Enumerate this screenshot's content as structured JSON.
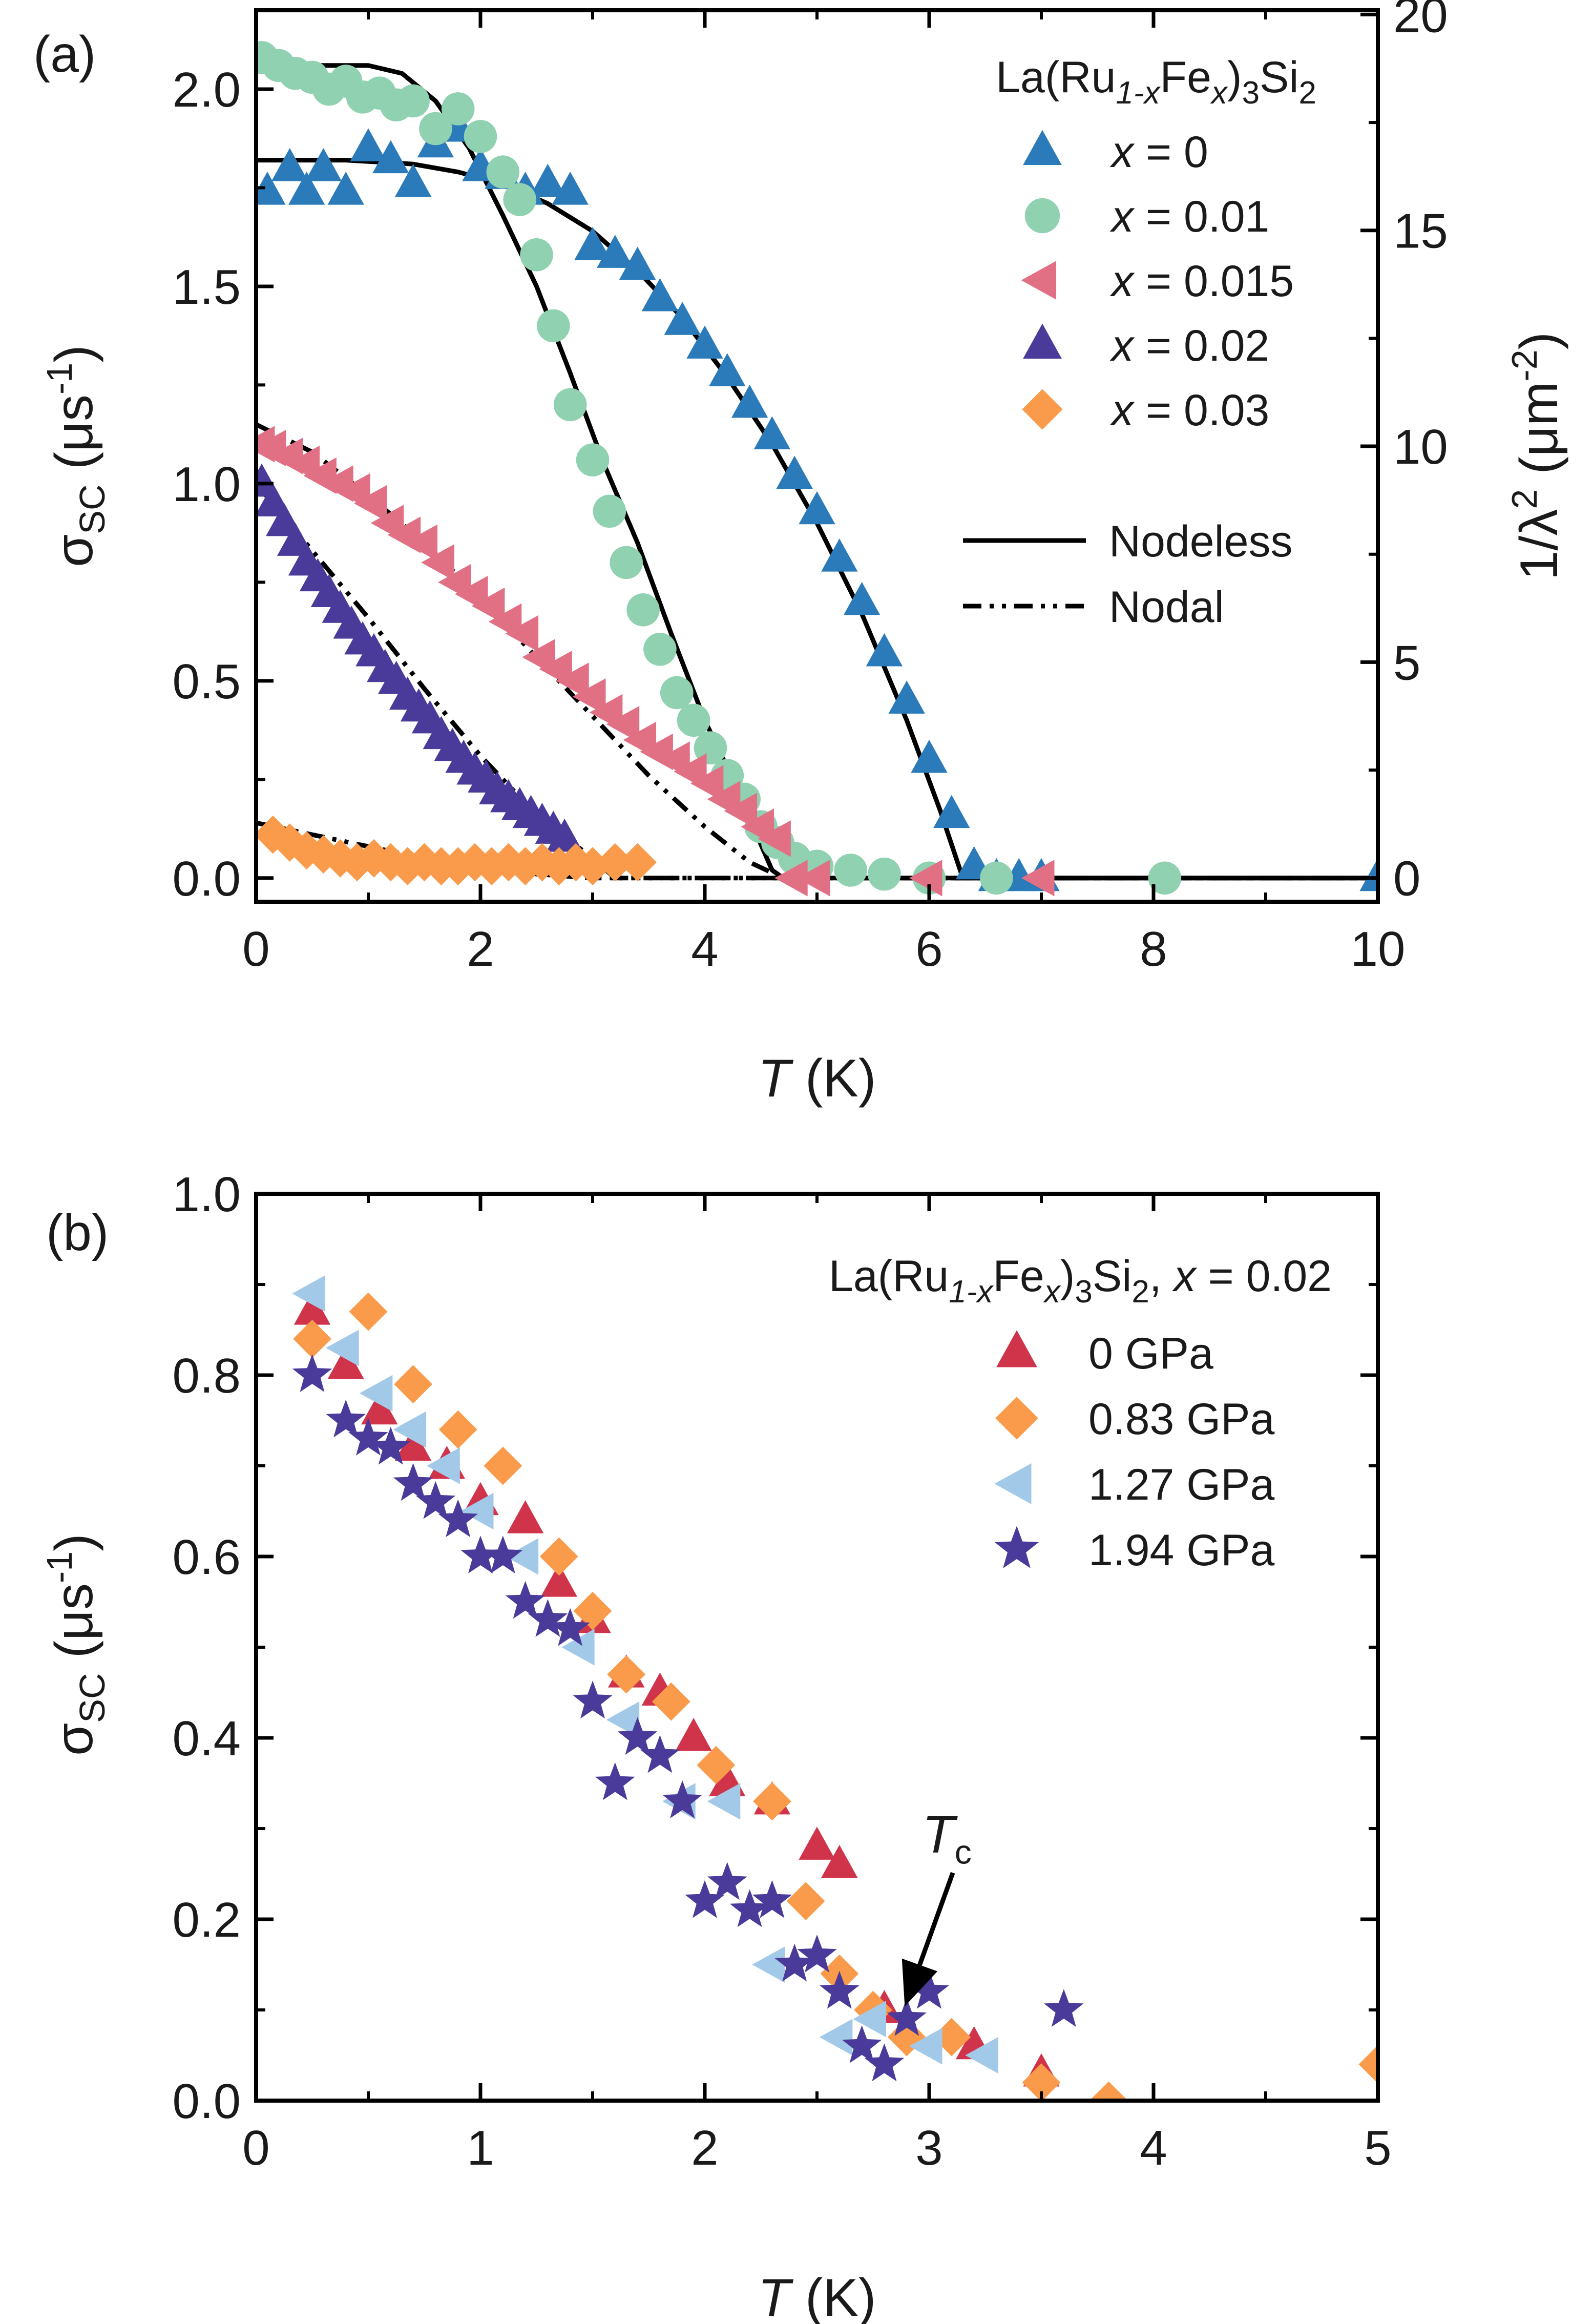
{
  "chart_data": [
    {
      "type": "scatter",
      "panel_label": "(a)",
      "title": "",
      "xlabel_italic": "T",
      "xlabel_unit": " (K)",
      "ylabel": "σSC (μs-1)",
      "ylabel_parts": {
        "sym": "σ",
        "sub": "SC",
        "pre": " (μs",
        "sup": "-1",
        "post": ")"
      },
      "y2label": "1/λ2 (μm-2)",
      "y2label_parts": {
        "pre": "1/λ",
        "sup": "2",
        "mid": " (μm",
        "sup2": "-2",
        "post": ")"
      },
      "xlim": [
        0,
        10
      ],
      "ylim": [
        -0.06,
        2.2
      ],
      "y2lim": [
        -0.55,
        20.1
      ],
      "xticks": [
        0,
        2,
        4,
        6,
        8,
        10
      ],
      "xtick_labels": [
        "0",
        "2",
        "4",
        "6",
        "8",
        "10"
      ],
      "yticks": [
        0.0,
        0.5,
        1.0,
        1.5,
        2.0
      ],
      "ytick_labels": [
        "0.0",
        "0.5",
        "1.0",
        "1.5",
        "2.0"
      ],
      "y2ticks": [
        0,
        5,
        10,
        15,
        20
      ],
      "y2tick_labels": [
        "0",
        "5",
        "10",
        "15",
        "20"
      ],
      "legend_title_parts": {
        "a": "La(Ru",
        "b": "1-x",
        "c": "Fe",
        "d": "x",
        "e": ")",
        "f": "3",
        "g": "Si",
        "h": "2"
      },
      "legend_position": "top-right",
      "series": [
        {
          "name": "x = 0",
          "name_var": "x",
          "name_rest": " = 0",
          "marker": "triangle-up",
          "color": "#2b7bba",
          "x": [
            0.1,
            0.3,
            0.45,
            0.6,
            0.8,
            1.0,
            1.2,
            1.4,
            1.6,
            1.8,
            2.0,
            2.2,
            2.4,
            2.6,
            2.8,
            3.0,
            3.2,
            3.4,
            3.6,
            3.8,
            4.0,
            4.2,
            4.4,
            4.6,
            4.8,
            5.0,
            5.2,
            5.4,
            5.6,
            5.8,
            6.0,
            6.2,
            6.4,
            6.6,
            6.8,
            7.0,
            10.0
          ],
          "y": [
            1.74,
            1.8,
            1.74,
            1.8,
            1.74,
            1.85,
            1.82,
            1.76,
            1.86,
            1.9,
            1.8,
            1.78,
            1.74,
            1.76,
            1.74,
            1.6,
            1.58,
            1.55,
            1.47,
            1.41,
            1.35,
            1.28,
            1.2,
            1.12,
            1.02,
            0.93,
            0.81,
            0.7,
            0.57,
            0.45,
            0.3,
            0.16,
            0.03,
            0.0,
            0.0,
            0.0,
            0.0
          ]
        },
        {
          "name": "x = 0.01",
          "name_var": "x",
          "name_rest": " = 0.01",
          "marker": "circle",
          "color": "#8fd1b0",
          "x": [
            0.05,
            0.2,
            0.35,
            0.5,
            0.65,
            0.8,
            0.95,
            1.1,
            1.25,
            1.4,
            1.6,
            1.8,
            2.0,
            2.2,
            2.35,
            2.5,
            2.65,
            2.8,
            3.0,
            3.15,
            3.3,
            3.45,
            3.6,
            3.75,
            3.9,
            4.05,
            4.2,
            4.35,
            4.5,
            4.65,
            4.8,
            5.0,
            5.3,
            5.6,
            6.0,
            6.6,
            8.1
          ],
          "y": [
            2.08,
            2.06,
            2.04,
            2.03,
            2.0,
            2.02,
            1.98,
            1.99,
            1.96,
            1.97,
            1.9,
            1.95,
            1.88,
            1.79,
            1.72,
            1.58,
            1.4,
            1.2,
            1.06,
            0.93,
            0.8,
            0.68,
            0.58,
            0.47,
            0.4,
            0.33,
            0.26,
            0.2,
            0.13,
            0.09,
            0.05,
            0.03,
            0.02,
            0.01,
            0.0,
            0.0,
            0.0
          ]
        },
        {
          "name": "x = 0.015",
          "name_var": "x",
          "name_rest": " = 0.015",
          "marker": "triangle-left",
          "color": "#e27084",
          "x": [
            0.05,
            0.15,
            0.3,
            0.45,
            0.6,
            0.75,
            0.9,
            1.05,
            1.2,
            1.35,
            1.5,
            1.65,
            1.8,
            1.95,
            2.1,
            2.25,
            2.4,
            2.55,
            2.7,
            2.85,
            3.0,
            3.15,
            3.3,
            3.45,
            3.6,
            3.75,
            3.9,
            4.05,
            4.2,
            4.35,
            4.5,
            4.65,
            4.8,
            5.0,
            6.0,
            7.0
          ],
          "y": [
            1.1,
            1.09,
            1.07,
            1.05,
            1.02,
            1.0,
            0.98,
            0.95,
            0.9,
            0.87,
            0.85,
            0.8,
            0.75,
            0.72,
            0.69,
            0.65,
            0.62,
            0.56,
            0.53,
            0.5,
            0.46,
            0.42,
            0.39,
            0.35,
            0.32,
            0.3,
            0.27,
            0.24,
            0.2,
            0.17,
            0.13,
            0.1,
            0.0,
            0.0,
            0.0,
            0.0
          ]
        },
        {
          "name": "x = 0.02",
          "name_var": "x",
          "name_rest": " = 0.02",
          "marker": "triangle-up",
          "color": "#4a3a99",
          "x": [
            0.05,
            0.15,
            0.25,
            0.35,
            0.45,
            0.55,
            0.65,
            0.75,
            0.85,
            0.95,
            1.05,
            1.15,
            1.25,
            1.35,
            1.45,
            1.55,
            1.65,
            1.75,
            1.85,
            1.95,
            2.05,
            2.15,
            2.25,
            2.35,
            2.45,
            2.55,
            2.65,
            2.75
          ],
          "y": [
            1.0,
            0.95,
            0.9,
            0.85,
            0.8,
            0.76,
            0.72,
            0.68,
            0.64,
            0.6,
            0.57,
            0.53,
            0.5,
            0.46,
            0.43,
            0.4,
            0.36,
            0.33,
            0.3,
            0.27,
            0.25,
            0.22,
            0.2,
            0.18,
            0.16,
            0.14,
            0.12,
            0.1
          ]
        },
        {
          "name": "x = 0.03",
          "name_var": "x",
          "name_rest": " = 0.03",
          "marker": "diamond",
          "color": "#f99b4a",
          "x": [
            0.15,
            0.3,
            0.45,
            0.6,
            0.75,
            0.9,
            1.05,
            1.2,
            1.35,
            1.5,
            1.65,
            1.8,
            1.95,
            2.1,
            2.25,
            2.4,
            2.55,
            2.7,
            2.85,
            3.0,
            3.2,
            3.4
          ],
          "y": [
            0.11,
            0.09,
            0.07,
            0.06,
            0.05,
            0.04,
            0.05,
            0.04,
            0.03,
            0.04,
            0.03,
            0.03,
            0.04,
            0.03,
            0.04,
            0.03,
            0.04,
            0.03,
            0.04,
            0.03,
            0.04,
            0.04
          ]
        },
        {
          "name": "Nodeless",
          "line": "solid",
          "color": "#000000",
          "x": [
            0,
            0.5,
            1.0,
            1.3,
            1.6,
            1.9,
            2.2,
            2.5,
            2.8,
            3.1,
            3.4,
            3.7,
            4.0,
            4.2,
            4.4,
            4.6,
            4.7,
            5.0,
            6.0,
            7.0,
            8.0,
            9.0,
            10.0
          ],
          "y": [
            2.06,
            2.06,
            2.06,
            2.04,
            1.97,
            1.85,
            1.68,
            1.5,
            1.28,
            1.05,
            0.85,
            0.62,
            0.4,
            0.28,
            0.15,
            0.02,
            0.0,
            0.0,
            0.0,
            0.0,
            0.0,
            0.0,
            0.0
          ]
        },
        {
          "name": "Nodeless",
          "line": "solid",
          "color": "#000000",
          "x": [
            0,
            0.8,
            1.4,
            1.8,
            2.2,
            2.6,
            3.0,
            3.4,
            3.8,
            4.2,
            4.6,
            5.0,
            5.4,
            5.8,
            6.1,
            6.3,
            7.0,
            8.0,
            9.0,
            10.0
          ],
          "y": [
            1.82,
            1.82,
            1.81,
            1.79,
            1.76,
            1.71,
            1.64,
            1.54,
            1.42,
            1.27,
            1.1,
            0.9,
            0.67,
            0.4,
            0.17,
            0.0,
            0.0,
            0.0,
            0.0,
            0.0
          ]
        },
        {
          "name": "Nodal",
          "line": "dashdotdot",
          "color": "#000000",
          "x": [
            0,
            0.5,
            1.0,
            1.5,
            2.0,
            2.5,
            3.0,
            3.5,
            4.0,
            4.4,
            4.7,
            10.0
          ],
          "y": [
            1.15,
            1.08,
            0.97,
            0.85,
            0.71,
            0.56,
            0.41,
            0.26,
            0.13,
            0.04,
            0.0,
            0.0
          ]
        },
        {
          "name": "Nodal",
          "line": "dashdotdot",
          "color": "#000000",
          "x": [
            0,
            0.5,
            1.0,
            1.5,
            2.0,
            2.5,
            3.0,
            3.2,
            10.0
          ],
          "y": [
            1.0,
            0.83,
            0.66,
            0.48,
            0.31,
            0.16,
            0.05,
            0.0,
            0.0
          ]
        },
        {
          "name": "Nodal",
          "line": "dashdotdot",
          "color": "#000000",
          "x": [
            0,
            0.5,
            1.0,
            1.5,
            2.0,
            2.5,
            3.0,
            3.2,
            10.0
          ],
          "y": [
            0.14,
            0.11,
            0.08,
            0.05,
            0.03,
            0.01,
            0.0,
            0.0,
            0.0
          ]
        }
      ],
      "line_legend": [
        {
          "name": "Nodeless",
          "style": "solid"
        },
        {
          "name": "Nodal",
          "style": "dashdotdot"
        }
      ]
    },
    {
      "type": "scatter",
      "panel_label": "(b)",
      "title": "",
      "xlabel_italic": "T",
      "xlabel_unit": " (K)",
      "ylabel": "σSC (μs-1)",
      "ylabel_parts": {
        "sym": "σ",
        "sub": "SC",
        "pre": " (μs",
        "sup": "-1",
        "post": ")"
      },
      "xlim": [
        0,
        5
      ],
      "ylim": [
        0,
        1.0
      ],
      "xticks": [
        0,
        1,
        2,
        3,
        4,
        5
      ],
      "xtick_labels": [
        "0",
        "1",
        "2",
        "3",
        "4",
        "5"
      ],
      "yticks": [
        0.0,
        0.2,
        0.4,
        0.6,
        0.8,
        1.0
      ],
      "ytick_labels": [
        "0.0",
        "0.2",
        "0.4",
        "0.6",
        "0.8",
        "1.0"
      ],
      "legend_title_parts": {
        "a": "La(Ru",
        "b": "1-x",
        "c": "Fe",
        "d": "x",
        "e": ")",
        "f": "3",
        "g": "Si",
        "h": "2",
        "i": ", ",
        "j": "x",
        "k": " = 0.02"
      },
      "legend_position": "top-right",
      "annotation": {
        "text_italic": "T",
        "text_sub": "c",
        "x": 2.9,
        "y": 0.11
      },
      "series": [
        {
          "name": "0 GPa",
          "marker": "triangle-up",
          "color": "#d0344b",
          "x": [
            0.25,
            0.4,
            0.55,
            0.7,
            0.85,
            1.0,
            1.2,
            1.35,
            1.5,
            1.65,
            1.8,
            1.95,
            2.1,
            2.3,
            2.5,
            2.6,
            2.8,
            3.2,
            3.5
          ],
          "y": [
            0.87,
            0.81,
            0.76,
            0.72,
            0.7,
            0.66,
            0.64,
            0.57,
            0.53,
            0.47,
            0.45,
            0.4,
            0.35,
            0.33,
            0.28,
            0.26,
            0.1,
            0.06,
            0.03
          ]
        },
        {
          "name": "0.83 GPa",
          "marker": "diamond",
          "color": "#f99b4a",
          "x": [
            0.25,
            0.5,
            0.7,
            0.9,
            1.1,
            1.35,
            1.5,
            1.65,
            1.85,
            2.05,
            2.3,
            2.45,
            2.6,
            2.75,
            2.9,
            3.1,
            3.5,
            3.8,
            5.0
          ],
          "y": [
            0.84,
            0.87,
            0.79,
            0.74,
            0.7,
            0.6,
            0.54,
            0.47,
            0.44,
            0.37,
            0.33,
            0.22,
            0.14,
            0.1,
            0.07,
            0.07,
            0.02,
            0.0,
            0.04
          ]
        },
        {
          "name": "1.27 GPa",
          "marker": "triangle-left",
          "color": "#a3c9e8",
          "x": [
            0.25,
            0.4,
            0.55,
            0.7,
            0.85,
            1.0,
            1.2,
            1.45,
            1.65,
            1.9,
            2.1,
            2.3,
            2.6,
            2.75,
            3.0,
            3.25
          ],
          "y": [
            0.89,
            0.83,
            0.78,
            0.74,
            0.7,
            0.65,
            0.6,
            0.5,
            0.42,
            0.33,
            0.33,
            0.15,
            0.07,
            0.09,
            0.06,
            0.05
          ]
        },
        {
          "name": "1.94 GPa",
          "marker": "star",
          "color": "#4a3a99",
          "x": [
            0.25,
            0.4,
            0.5,
            0.6,
            0.7,
            0.8,
            0.9,
            1.0,
            1.1,
            1.2,
            1.3,
            1.4,
            1.5,
            1.6,
            1.7,
            1.8,
            1.9,
            2.0,
            2.1,
            2.2,
            2.3,
            2.4,
            2.5,
            2.6,
            2.7,
            2.8,
            2.9,
            3.0,
            3.6
          ],
          "y": [
            0.8,
            0.75,
            0.73,
            0.72,
            0.68,
            0.66,
            0.64,
            0.6,
            0.6,
            0.55,
            0.53,
            0.52,
            0.44,
            0.35,
            0.4,
            0.38,
            0.33,
            0.22,
            0.24,
            0.21,
            0.22,
            0.15,
            0.16,
            0.12,
            0.06,
            0.04,
            0.09,
            0.12,
            0.1
          ]
        }
      ]
    }
  ]
}
